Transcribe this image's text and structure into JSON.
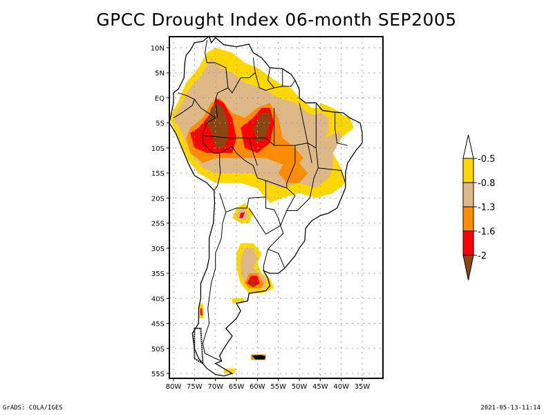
{
  "title": "GPCC Drought Index 06-month SEP2005",
  "footer": {
    "left": "GrADS: COLA/IGES",
    "right": "2021-05-13-11:14"
  },
  "map": {
    "lon_range": [
      -81,
      -30
    ],
    "lat_range": [
      -56,
      11
    ],
    "lat_ticks": [
      {
        "value": 10,
        "label": "10N"
      },
      {
        "value": 5,
        "label": "5N"
      },
      {
        "value": 0,
        "label": "EQ"
      },
      {
        "value": -5,
        "label": "5S"
      },
      {
        "value": -10,
        "label": "10S"
      },
      {
        "value": -15,
        "label": "15S"
      },
      {
        "value": -20,
        "label": "20S"
      },
      {
        "value": -25,
        "label": "25S"
      },
      {
        "value": -30,
        "label": "30S"
      },
      {
        "value": -35,
        "label": "35S"
      },
      {
        "value": -40,
        "label": "40S"
      },
      {
        "value": -45,
        "label": "45S"
      },
      {
        "value": -50,
        "label": "50S"
      },
      {
        "value": -55,
        "label": "55S"
      }
    ],
    "lon_ticks": [
      {
        "value": -80,
        "label": "80W"
      },
      {
        "value": -75,
        "label": "75W"
      },
      {
        "value": -70,
        "label": "70W"
      },
      {
        "value": -65,
        "label": "65W"
      },
      {
        "value": -60,
        "label": "60W"
      },
      {
        "value": -55,
        "label": "55W"
      },
      {
        "value": -50,
        "label": "50W"
      },
      {
        "value": -45,
        "label": "45W"
      },
      {
        "value": -40,
        "label": "40W"
      },
      {
        "value": -35,
        "label": "35W"
      }
    ],
    "gridlines": "dotted"
  },
  "legend": {
    "position": "right",
    "levels": [
      {
        "label": "-0.5",
        "color": "#ffd700"
      },
      {
        "label": "-0.8",
        "color": "#deb887"
      },
      {
        "label": "-1.3",
        "color": "#ff8c00"
      },
      {
        "label": "-1.6",
        "color": "#ff0000"
      },
      {
        "label": "-2",
        "color": "#8b4513"
      }
    ],
    "top_cap_color": "#ffffff",
    "bottom_cap_color": "#8b4513"
  },
  "drought_regions": [
    {
      "name": "western-amazon",
      "max_class": "-2"
    },
    {
      "name": "central-amazon",
      "max_class": "-2"
    },
    {
      "name": "peru-andes",
      "max_class": "-1.6"
    },
    {
      "name": "central-brazil",
      "max_class": "-1.3"
    },
    {
      "name": "northeast-brazil",
      "max_class": "-0.8"
    },
    {
      "name": "northern-argentina",
      "max_class": "-1.6"
    },
    {
      "name": "pampas",
      "max_class": "-2"
    },
    {
      "name": "southern-chile",
      "max_class": "-1.6"
    },
    {
      "name": "falklands",
      "max_class": "-1.6"
    }
  ]
}
